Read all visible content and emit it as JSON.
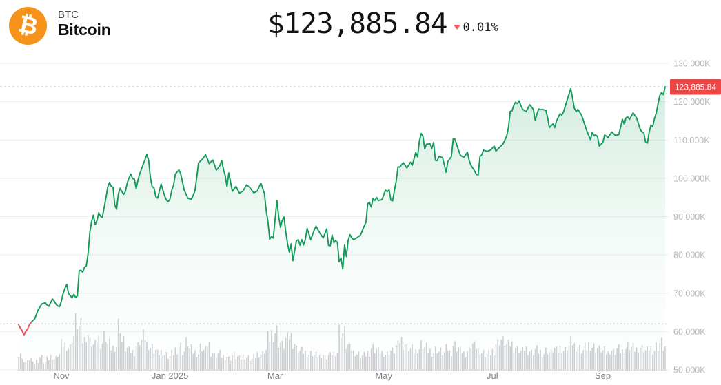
{
  "header": {
    "symbol": "BTC",
    "name": "Bitcoin",
    "logo_glyph": "₿",
    "price": "$123,885.84",
    "change_percent": "0.01%",
    "change_direction": "down"
  },
  "colors": {
    "logo_bg": "#f7931a",
    "line_up": "#149a58",
    "line_down": "#f0565e",
    "fill_rgb": "20,154,88",
    "grid": "#ededed",
    "dashed": "#c4c4c4",
    "y_label": "#b4b8bc",
    "x_label": "#7b7f84",
    "volume": "#cdd0d3",
    "badge_bg": "#ef4646",
    "badge_text": "#ffffff",
    "change_down": "#ef5a60"
  },
  "chart_data": {
    "type": "area",
    "title": "Bitcoin (BTC) price, 1 year, daily",
    "unit": "USD thousands",
    "current_price": 123885.84,
    "current_price_label": "123,885.84",
    "baseline_value_k": 62.0,
    "ylim_k": [
      50,
      130
    ],
    "grid": "horizontal-only",
    "legend": "none",
    "y_ticks": [
      {
        "v": 130,
        "label": "130.000K"
      },
      {
        "v": 120,
        "label": "120.000K"
      },
      {
        "v": 110,
        "label": "110.000K"
      },
      {
        "v": 100,
        "label": "100.000K"
      },
      {
        "v": 90,
        "label": "90.000K"
      },
      {
        "v": 80,
        "label": "80.000K"
      },
      {
        "v": 70,
        "label": "70.000K"
      },
      {
        "v": 60,
        "label": "60.000K"
      },
      {
        "v": 50,
        "label": "50.000K"
      }
    ],
    "x_ticks": [
      {
        "label": "Nov",
        "d": 24
      },
      {
        "label": "Jan 2025",
        "d": 85
      },
      {
        "label": "Mar",
        "d": 144
      },
      {
        "label": "May",
        "d": 205
      },
      {
        "label": "Jul",
        "d": 266
      },
      {
        "label": "Sep",
        "d": 328
      }
    ],
    "red_segment_points": 8,
    "series_dv_k": [
      [
        0,
        61.8
      ],
      [
        1,
        60.9
      ],
      [
        2,
        60.2
      ],
      [
        3,
        59.0
      ],
      [
        4,
        60.1
      ],
      [
        5,
        60.6
      ],
      [
        6,
        61.7
      ],
      [
        7,
        62.4
      ],
      [
        9,
        63.3
      ],
      [
        11,
        65.7
      ],
      [
        13,
        67.2
      ],
      [
        15,
        67.5
      ],
      [
        16,
        66.9
      ],
      [
        17,
        66.6
      ],
      [
        19,
        68.5
      ],
      [
        20,
        67.9
      ],
      [
        21,
        67.1
      ],
      [
        22,
        66.7
      ],
      [
        23,
        66.5
      ],
      [
        24,
        67.9
      ],
      [
        25,
        69.9
      ],
      [
        26,
        71.3
      ],
      [
        27,
        72.3
      ],
      [
        28,
        69.9
      ],
      [
        29,
        69.4
      ],
      [
        30,
        68.8
      ],
      [
        31,
        69.7
      ],
      [
        32,
        68.9
      ],
      [
        33,
        69.3
      ],
      [
        34,
        75.9
      ],
      [
        35,
        76.0
      ],
      [
        36,
        75.5
      ],
      [
        37,
        76.8
      ],
      [
        38,
        77.1
      ],
      [
        39,
        80.4
      ],
      [
        40,
        86.0
      ],
      [
        41,
        88.7
      ],
      [
        42,
        90.4
      ],
      [
        43,
        87.9
      ],
      [
        44,
        89.0
      ],
      [
        45,
        91.0
      ],
      [
        46,
        90.1
      ],
      [
        47,
        89.8
      ],
      [
        48,
        92.3
      ],
      [
        49,
        94.8
      ],
      [
        50,
        97.6
      ],
      [
        51,
        98.9
      ],
      [
        52,
        97.9
      ],
      [
        53,
        97.7
      ],
      [
        54,
        93.0
      ],
      [
        55,
        91.9
      ],
      [
        56,
        95.9
      ],
      [
        57,
        97.4
      ],
      [
        58,
        96.5
      ],
      [
        59,
        95.8
      ],
      [
        60,
        96.6
      ],
      [
        61,
        98.8
      ],
      [
        62,
        100.1
      ],
      [
        63,
        101.1
      ],
      [
        64,
        99.9
      ],
      [
        65,
        99.8
      ],
      [
        66,
        97.3
      ],
      [
        67,
        99.5
      ],
      [
        68,
        101.2
      ],
      [
        70,
        103.7
      ],
      [
        72,
        106.2
      ],
      [
        73,
        104.8
      ],
      [
        74,
        100.1
      ],
      [
        75,
        97.8
      ],
      [
        76,
        97.5
      ],
      [
        77,
        95.2
      ],
      [
        78,
        94.8
      ],
      [
        80,
        98.5
      ],
      [
        82,
        95.4
      ],
      [
        83,
        94.3
      ],
      [
        84,
        93.9
      ],
      [
        85,
        94.6
      ],
      [
        86,
        96.9
      ],
      [
        87,
        98.2
      ],
      [
        88,
        101.1
      ],
      [
        90,
        102.2
      ],
      [
        91,
        101.2
      ],
      [
        93,
        96.9
      ],
      [
        95,
        94.8
      ],
      [
        97,
        94.5
      ],
      [
        99,
        96.7
      ],
      [
        100,
        100.2
      ],
      [
        101,
        104.0
      ],
      [
        103,
        104.9
      ],
      [
        105,
        106.1
      ],
      [
        106,
        105.1
      ],
      [
        107,
        103.8
      ],
      [
        109,
        104.8
      ],
      [
        111,
        102.1
      ],
      [
        113,
        103.3
      ],
      [
        114,
        104.7
      ],
      [
        115,
        102.3
      ],
      [
        116,
        100.7
      ],
      [
        117,
        97.8
      ],
      [
        118,
        101.4
      ],
      [
        120,
        96.6
      ],
      [
        122,
        97.9
      ],
      [
        124,
        96.1
      ],
      [
        126,
        96.7
      ],
      [
        128,
        98.3
      ],
      [
        130,
        97.5
      ],
      [
        132,
        96.2
      ],
      [
        134,
        96.7
      ],
      [
        136,
        98.8
      ],
      [
        138,
        96.0
      ],
      [
        139,
        91.6
      ],
      [
        140,
        88.6
      ],
      [
        141,
        84.1
      ],
      [
        142,
        84.8
      ],
      [
        143,
        84.4
      ],
      [
        145,
        94.2
      ],
      [
        146,
        90.0
      ],
      [
        147,
        87.2
      ],
      [
        148,
        89.0
      ],
      [
        149,
        89.9
      ],
      [
        150,
        86.0
      ],
      [
        151,
        82.9
      ],
      [
        152,
        80.7
      ],
      [
        153,
        82.9
      ],
      [
        154,
        78.5
      ],
      [
        155,
        81.1
      ],
      [
        156,
        83.7
      ],
      [
        157,
        84.0
      ],
      [
        158,
        82.5
      ],
      [
        159,
        84.0
      ],
      [
        160,
        82.6
      ],
      [
        161,
        84.1
      ],
      [
        162,
        86.9
      ],
      [
        164,
        84.0
      ],
      [
        166,
        86.5
      ],
      [
        167,
        87.5
      ],
      [
        169,
        85.8
      ],
      [
        171,
        84.4
      ],
      [
        173,
        86.8
      ],
      [
        174,
        82.5
      ],
      [
        175,
        82.4
      ],
      [
        176,
        85.2
      ],
      [
        177,
        83.2
      ],
      [
        178,
        83.8
      ],
      [
        179,
        83.2
      ],
      [
        180,
        78.2
      ],
      [
        181,
        79.2
      ],
      [
        182,
        76.3
      ],
      [
        183,
        82.6
      ],
      [
        184,
        79.6
      ],
      [
        185,
        83.7
      ],
      [
        186,
        85.3
      ],
      [
        187,
        84.5
      ],
      [
        188,
        84.0
      ],
      [
        190,
        84.5
      ],
      [
        192,
        85.2
      ],
      [
        194,
        87.5
      ],
      [
        195,
        88.5
      ],
      [
        196,
        93.4
      ],
      [
        197,
        93.7
      ],
      [
        198,
        92.5
      ],
      [
        199,
        94.7
      ],
      [
        200,
        94.2
      ],
      [
        201,
        95.0
      ],
      [
        202,
        94.2
      ],
      [
        204,
        94.4
      ],
      [
        206,
        96.9
      ],
      [
        207,
        96.5
      ],
      [
        208,
        97.0
      ],
      [
        209,
        94.3
      ],
      [
        210,
        94.1
      ],
      [
        211,
        96.8
      ],
      [
        212,
        99.3
      ],
      [
        213,
        103.0
      ],
      [
        214,
        102.9
      ],
      [
        216,
        104.1
      ],
      [
        218,
        102.7
      ],
      [
        220,
        104.2
      ],
      [
        221,
        103.4
      ],
      [
        223,
        106.8
      ],
      [
        224,
        105.6
      ],
      [
        225,
        109.7
      ],
      [
        226,
        111.7
      ],
      [
        227,
        111.0
      ],
      [
        228,
        107.7
      ],
      [
        229,
        108.9
      ],
      [
        231,
        109.0
      ],
      [
        232,
        107.8
      ],
      [
        233,
        109.4
      ],
      [
        234,
        104.7
      ],
      [
        235,
        104.6
      ],
      [
        236,
        105.7
      ],
      [
        238,
        105.4
      ],
      [
        240,
        101.6
      ],
      [
        241,
        104.4
      ],
      [
        243,
        105.7
      ],
      [
        244,
        110.3
      ],
      [
        245,
        110.2
      ],
      [
        246,
        108.7
      ],
      [
        248,
        106.0
      ],
      [
        250,
        105.5
      ],
      [
        252,
        106.8
      ],
      [
        253,
        104.6
      ],
      [
        254,
        103.4
      ],
      [
        256,
        101.9
      ],
      [
        257,
        101.0
      ],
      [
        258,
        100.9
      ],
      [
        259,
        105.7
      ],
      [
        260,
        106.1
      ],
      [
        261,
        107.4
      ],
      [
        263,
        107.0
      ],
      [
        265,
        107.4
      ],
      [
        267,
        108.4
      ],
      [
        268,
        107.1
      ],
      [
        270,
        108.1
      ],
      [
        272,
        109.0
      ],
      [
        274,
        111.0
      ],
      [
        275,
        113.2
      ],
      [
        276,
        117.5
      ],
      [
        277,
        117.6
      ],
      [
        278,
        119.1
      ],
      [
        279,
        119.9
      ],
      [
        280,
        119.5
      ],
      [
        281,
        120.2
      ],
      [
        282,
        119.0
      ],
      [
        283,
        118.0
      ],
      [
        285,
        117.4
      ],
      [
        286,
        118.4
      ],
      [
        287,
        119.2
      ],
      [
        289,
        118.0
      ],
      [
        290,
        115.1
      ],
      [
        291,
        116.8
      ],
      [
        292,
        118.1
      ],
      [
        293,
        117.9
      ],
      [
        294,
        118.0
      ],
      [
        296,
        117.7
      ],
      [
        297,
        115.8
      ],
      [
        298,
        113.2
      ],
      [
        300,
        114.2
      ],
      [
        301,
        113.2
      ],
      [
        302,
        115.0
      ],
      [
        304,
        116.9
      ],
      [
        305,
        116.5
      ],
      [
        306,
        117.4
      ],
      [
        307,
        119.0
      ],
      [
        308,
        120.5
      ],
      [
        310,
        123.4
      ],
      [
        311,
        121.0
      ],
      [
        312,
        118.3
      ],
      [
        313,
        117.4
      ],
      [
        314,
        118.0
      ],
      [
        316,
        116.5
      ],
      [
        317,
        115.2
      ],
      [
        319,
        112.4
      ],
      [
        321,
        110.1
      ],
      [
        322,
        111.9
      ],
      [
        323,
        111.2
      ],
      [
        324,
        111.3
      ],
      [
        325,
        110.9
      ],
      [
        326,
        108.4
      ],
      [
        327,
        108.9
      ],
      [
        328,
        109.3
      ],
      [
        329,
        111.3
      ],
      [
        331,
        110.7
      ],
      [
        333,
        112.1
      ],
      [
        335,
        111.2
      ],
      [
        337,
        111.4
      ],
      [
        339,
        115.4
      ],
      [
        340,
        114.1
      ],
      [
        341,
        115.8
      ],
      [
        342,
        116.0
      ],
      [
        343,
        115.4
      ],
      [
        345,
        117.1
      ],
      [
        346,
        116.4
      ],
      [
        347,
        115.7
      ],
      [
        349,
        112.8
      ],
      [
        350,
        112.1
      ],
      [
        351,
        111.9
      ],
      [
        352,
        109.4
      ],
      [
        353,
        109.2
      ],
      [
        354,
        111.9
      ],
      [
        355,
        113.9
      ],
      [
        356,
        113.5
      ],
      [
        357,
        115.6
      ],
      [
        358,
        117.0
      ],
      [
        359,
        119.5
      ],
      [
        360,
        121.6
      ],
      [
        361,
        122.4
      ],
      [
        362,
        121.8
      ],
      [
        363,
        123.9
      ]
    ],
    "volume_rel": [
      38,
      22,
      18,
      25,
      15,
      20,
      28,
      18,
      24,
      30,
      26,
      34,
      55,
      55,
      48,
      72,
      100,
      88,
      62,
      75,
      58,
      52,
      66,
      58,
      72,
      55,
      48,
      52,
      95,
      60,
      45,
      40,
      38,
      50,
      62,
      70,
      55,
      48,
      42,
      36,
      40,
      34,
      30,
      36,
      45,
      52,
      40,
      58,
      44,
      38,
      35,
      48,
      42,
      55,
      38,
      32,
      36,
      30,
      30,
      26,
      32,
      28,
      25,
      30,
      27,
      24,
      28,
      35,
      35,
      42,
      68,
      78,
      82,
      58,
      52,
      64,
      70,
      56,
      44,
      40,
      38,
      34,
      36,
      32,
      30,
      34,
      28,
      32,
      36,
      40,
      85,
      78,
      52,
      45,
      38,
      34,
      30,
      32,
      38,
      48,
      44,
      40,
      38,
      35,
      42,
      40,
      50,
      62,
      55,
      48,
      44,
      40,
      46,
      55,
      48,
      42,
      38,
      44,
      40,
      36,
      44,
      38,
      52,
      46,
      40,
      36,
      42,
      55,
      50,
      44,
      38,
      34,
      36,
      42,
      58,
      65,
      60,
      52,
      55,
      48,
      44,
      40,
      46,
      42,
      38,
      44,
      40,
      36,
      42,
      38,
      44,
      40,
      46,
      42,
      50,
      58,
      52,
      46,
      42,
      48,
      55,
      50,
      46,
      44,
      40,
      36,
      42,
      38,
      44,
      40,
      46,
      52,
      48,
      44,
      50,
      46,
      42,
      48,
      44,
      52,
      58,
      48
    ]
  }
}
